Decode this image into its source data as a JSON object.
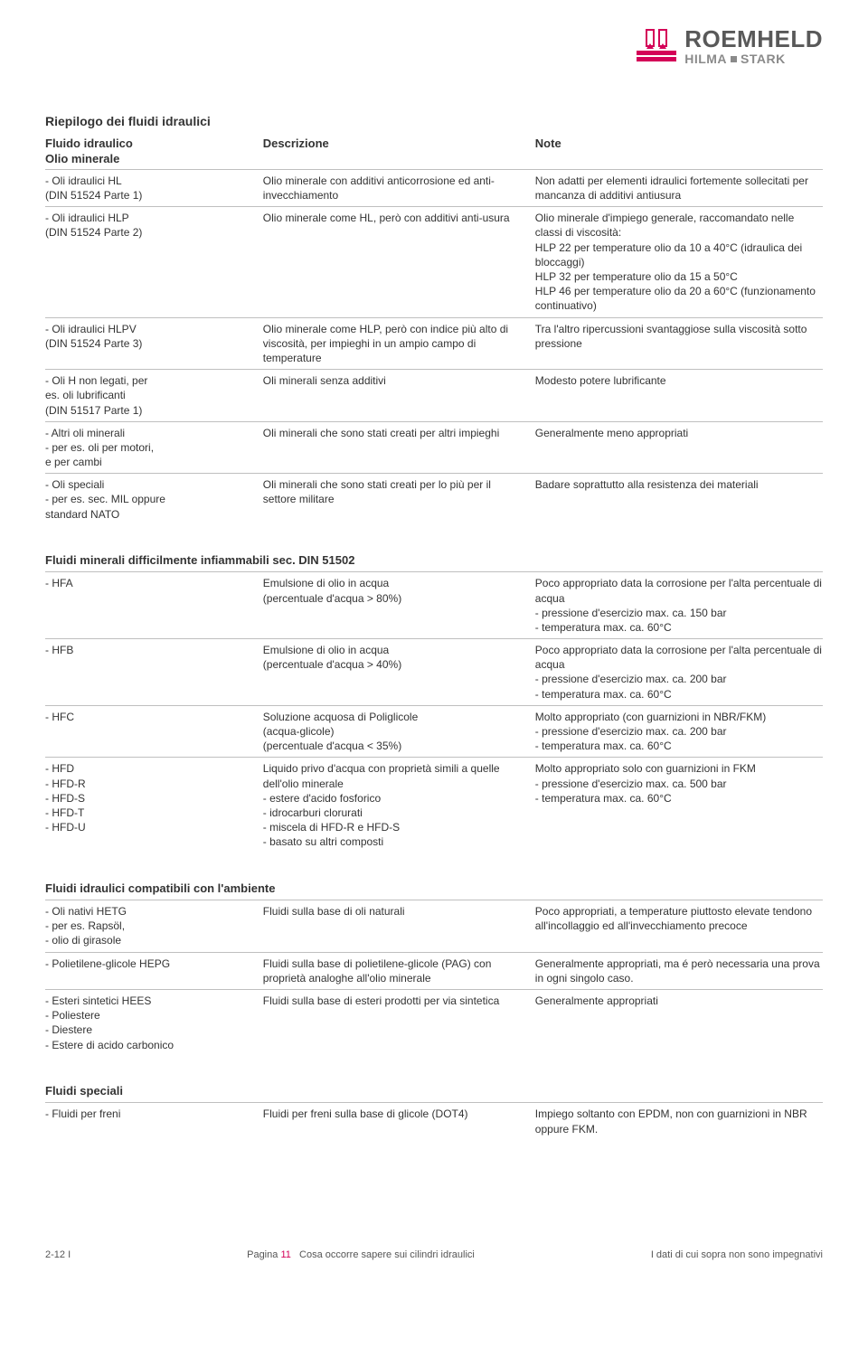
{
  "logo": {
    "main": "ROEMHELD",
    "sub_a": "HILMA",
    "sub_b": "STARK"
  },
  "colors": {
    "magenta": "#d40058",
    "text": "#333333",
    "rule": "#bfbfbf",
    "gray": "#595959"
  },
  "title": "Riepilogo dei fluidi idraulici",
  "hdr": {
    "c1": "Fluido idraulico",
    "c2": "Descrizione",
    "c3": "Note",
    "c1sub": "Olio minerale"
  },
  "sec1": [
    {
      "c1": "- Oli idraulici HL\n  (DIN 51524 Parte 1)",
      "c2": "Olio minerale con additivi anticorrosione ed anti-invecchiamento",
      "c3": "Non adatti per elementi idraulici fortemente sollecitati per mancanza di additivi antiusura"
    },
    {
      "c1": "- Oli idraulici HLP\n  (DIN 51524 Parte 2)",
      "c2": "Olio minerale come HL, però con additivi anti-usura",
      "c3": "Olio minerale d'impiego generale, raccomandato nelle classi di viscosità:\nHLP 22 per temperature olio da 10 a 40°C (idraulica dei bloccaggi)\nHLP 32 per temperature olio da 15 a 50°C\nHLP 46 per temperature olio da 20 a 60°C (funzionamento continuativo)"
    },
    {
      "c1": "- Oli idraulici HLPV\n  (DIN 51524 Parte 3)",
      "c2": "Olio minerale come HLP, però con indice più alto di viscosità, per impieghi in un ampio campo di temperature",
      "c3": "Tra l'altro ripercussioni svantaggiose sulla viscosità sotto pressione"
    },
    {
      "c1": "- Oli H non legati, per\n  es. oli lubrificanti\n  (DIN 51517 Parte 1)",
      "c2": "Oli minerali senza additivi",
      "c3": "Modesto potere lubrificante"
    },
    {
      "c1": "- Altri oli minerali\n  - per es. oli per motori,\n    e per cambi",
      "c2": "Oli minerali che sono stati creati per altri impieghi",
      "c3": "Generalmente meno appropriati"
    },
    {
      "c1": "- Oli speciali\n  - per es. sec. MIL oppure\n    standard NATO",
      "c2": "Oli minerali che sono stati creati per lo più per il settore militare",
      "c3": "Badare soprattutto alla resistenza dei materiali"
    }
  ],
  "sec2_title": "Fluidi minerali difficilmente infiammabili sec. DIN 51502",
  "sec2": [
    {
      "c1": "- HFA",
      "c2": "Emulsione di olio in acqua\n(percentuale d'acqua > 80%)",
      "c3": "Poco appropriato data la corrosione per l'alta percentuale di acqua\n- pressione d'esercizio max. ca. 150 bar\n- temperatura max. ca. 60°C"
    },
    {
      "c1": "- HFB",
      "c2": "Emulsione di olio in acqua\n(percentuale d'acqua > 40%)",
      "c3": "Poco appropriato data la corrosione per l'alta percentuale di acqua\n- pressione d'esercizio max. ca. 200 bar\n- temperatura max. ca. 60°C"
    },
    {
      "c1": "- HFC",
      "c2": "Soluzione acquosa di Poliglicole\n(acqua-glicole)\n(percentuale d'acqua < 35%)",
      "c3": "Molto appropriato (con guarnizioni in NBR/FKM)\n- pressione d'esercizio max. ca. 200 bar\n- temperatura max. ca. 60°C"
    },
    {
      "c1": "- HFD\n  - HFD-R\n  - HFD-S\n  - HFD-T\n  - HFD-U",
      "c2": "Liquido privo d'acqua con proprietà simili a quelle dell'olio minerale\n- estere d'acido fosforico\n- idrocarburi clorurati\n- miscela di HFD-R e HFD-S\n- basato su altri composti",
      "c3": "Molto appropriato solo con guarnizioni in FKM\n- pressione d'esercizio max. ca. 500 bar\n- temperatura max. ca. 60°C"
    }
  ],
  "sec3_title": "Fluidi idraulici compatibili con l'ambiente",
  "sec3": [
    {
      "c1": "- Oli nativi HETG\n  - per es. Rapsöl,\n  - olio di girasole",
      "c2": "Fluidi sulla base di oli naturali",
      "c3": "Poco appropriati, a temperature piuttosto elevate tendono all'incollaggio ed all'invecchiamento precoce"
    },
    {
      "c1": "- Polietilene-glicole HEPG",
      "c2": "Fluidi sulla base di polietilene-glicole (PAG) con proprietà analoghe all'olio minerale",
      "c3": "Generalmente appropriati, ma é però necessaria una prova in ogni singolo caso."
    },
    {
      "c1": "- Esteri sintetici HEES\n  - Poliestere\n  - Diestere\n  - Estere di acido carbonico",
      "c2": "Fluidi sulla base di esteri prodotti per via sintetica",
      "c3": "Generalmente appropriati"
    }
  ],
  "sec4_title": "Fluidi speciali",
  "sec4": [
    {
      "c1": "- Fluidi per freni",
      "c2": "Fluidi per freni sulla base di glicole (DOT4)",
      "c3": "Impiego soltanto con EPDM, non con guarnizioni in NBR oppure FKM."
    }
  ],
  "footer": {
    "left": "2-12 I",
    "mid_a": "Pagina",
    "mid_num": "11",
    "mid_b": "Cosa occorre sapere sui cilindri idraulici",
    "right": "I dati di cui sopra non sono impegnativi"
  }
}
